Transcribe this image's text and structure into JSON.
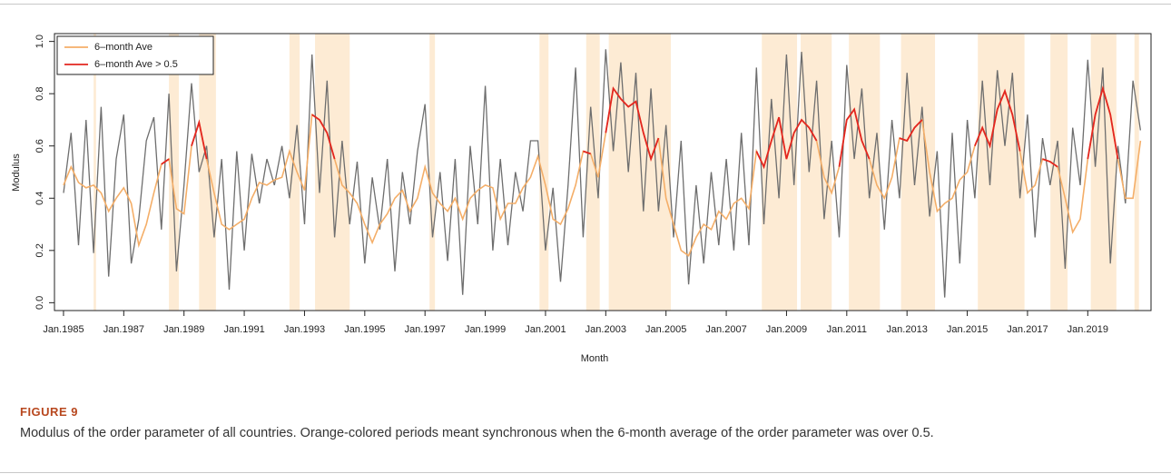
{
  "chart_data": {
    "type": "line",
    "x_label": "Month",
    "y_label": "Modulus",
    "xlim": [
      1984.7,
      2021.1
    ],
    "ylim": [
      -0.03,
      1.03
    ],
    "xticks": [
      {
        "value": 1985,
        "label": "Jan.1985"
      },
      {
        "value": 1987,
        "label": "Jan.1987"
      },
      {
        "value": 1989,
        "label": "Jan.1989"
      },
      {
        "value": 1991,
        "label": "Jan.1991"
      },
      {
        "value": 1993,
        "label": "Jan.1993"
      },
      {
        "value": 1995,
        "label": "Jan.1995"
      },
      {
        "value": 1997,
        "label": "Jan.1997"
      },
      {
        "value": 1999,
        "label": "Jan.1999"
      },
      {
        "value": 2001,
        "label": "Jan.2001"
      },
      {
        "value": 2003,
        "label": "Jan.2003"
      },
      {
        "value": 2005,
        "label": "Jan.2005"
      },
      {
        "value": 2007,
        "label": "Jan.2007"
      },
      {
        "value": 2009,
        "label": "Jan.2009"
      },
      {
        "value": 2011,
        "label": "Jan.2011"
      },
      {
        "value": 2013,
        "label": "Jan.2013"
      },
      {
        "value": 2015,
        "label": "Jan.2015"
      },
      {
        "value": 2017,
        "label": "Jan.2017"
      },
      {
        "value": 2019,
        "label": "Jan.2019"
      }
    ],
    "yticks": [
      {
        "value": 0,
        "label": "0.0"
      },
      0.2,
      0.4,
      0.6,
      0.8,
      {
        "value": 1,
        "label": "1.0"
      }
    ],
    "legend": "top-left",
    "periods_color": "#fdebd4",
    "periods": [
      [
        1986.0,
        1986.08
      ],
      [
        1988.5,
        1988.83
      ],
      [
        1989.5,
        1990.06
      ],
      [
        1992.5,
        1992.84
      ],
      [
        1993.35,
        1994.5
      ],
      [
        1997.15,
        1997.33
      ],
      [
        2000.8,
        2001.1
      ],
      [
        2002.35,
        2002.8
      ],
      [
        2003.1,
        2005.16
      ],
      [
        2008.18,
        2009.35
      ],
      [
        2009.47,
        2010.5
      ],
      [
        2011.07,
        2012.1
      ],
      [
        2012.8,
        2013.93
      ],
      [
        2015.35,
        2016.9
      ],
      [
        2017.76,
        2018.33
      ],
      [
        2019.1,
        2019.95
      ],
      [
        2020.55,
        2020.7
      ]
    ],
    "x": [
      1985,
      1985.25,
      1985.5,
      1985.75,
      1986,
      1986.25,
      1986.5,
      1986.75,
      1987,
      1987.25,
      1987.5,
      1987.75,
      1988,
      1988.25,
      1988.5,
      1988.75,
      1989,
      1989.25,
      1989.5,
      1989.75,
      1990,
      1990.25,
      1990.5,
      1990.75,
      1991,
      1991.25,
      1991.5,
      1991.75,
      1992,
      1992.25,
      1992.5,
      1992.75,
      1993,
      1993.25,
      1993.5,
      1993.75,
      1994,
      1994.25,
      1994.5,
      1994.75,
      1995,
      1995.25,
      1995.5,
      1995.75,
      1996,
      1996.25,
      1996.5,
      1996.75,
      1997,
      1997.25,
      1997.5,
      1997.75,
      1998,
      1998.25,
      1998.5,
      1998.75,
      1999,
      1999.25,
      1999.5,
      1999.75,
      2000,
      2000.25,
      2000.5,
      2000.75,
      2001,
      2001.25,
      2001.5,
      2001.75,
      2002,
      2002.25,
      2002.5,
      2002.75,
      2003,
      2003.25,
      2003.5,
      2003.75,
      2004,
      2004.25,
      2004.5,
      2004.75,
      2005,
      2005.25,
      2005.5,
      2005.75,
      2006,
      2006.25,
      2006.5,
      2006.75,
      2007,
      2007.25,
      2007.5,
      2007.75,
      2008,
      2008.25,
      2008.5,
      2008.75,
      2009,
      2009.25,
      2009.5,
      2009.75,
      2010,
      2010.25,
      2010.5,
      2010.75,
      2011,
      2011.25,
      2011.5,
      2011.75,
      2012,
      2012.25,
      2012.5,
      2012.75,
      2013,
      2013.25,
      2013.5,
      2013.75,
      2014,
      2014.25,
      2014.5,
      2014.75,
      2015,
      2015.25,
      2015.5,
      2015.75,
      2016,
      2016.25,
      2016.5,
      2016.75,
      2017,
      2017.25,
      2017.5,
      2017.75,
      2018,
      2018.25,
      2018.5,
      2018.75,
      2019,
      2019.25,
      2019.5,
      2019.75,
      2020,
      2020.25,
      2020.5,
      2020.75
    ],
    "series": [
      {
        "color": "#6e6e6e",
        "values": [
          0.42,
          0.65,
          0.22,
          0.7,
          0.19,
          0.75,
          0.1,
          0.55,
          0.72,
          0.15,
          0.32,
          0.62,
          0.71,
          0.28,
          0.8,
          0.12,
          0.45,
          0.84,
          0.5,
          0.6,
          0.25,
          0.55,
          0.05,
          0.58,
          0.2,
          0.57,
          0.38,
          0.55,
          0.45,
          0.6,
          0.4,
          0.68,
          0.3,
          0.95,
          0.42,
          0.85,
          0.25,
          0.62,
          0.3,
          0.54,
          0.15,
          0.48,
          0.28,
          0.55,
          0.12,
          0.5,
          0.3,
          0.58,
          0.76,
          0.25,
          0.5,
          0.16,
          0.55,
          0.03,
          0.6,
          0.3,
          0.83,
          0.2,
          0.55,
          0.22,
          0.5,
          0.35,
          0.62,
          0.62,
          0.2,
          0.44,
          0.08,
          0.45,
          0.9,
          0.25,
          0.75,
          0.4,
          0.97,
          0.58,
          0.92,
          0.5,
          0.88,
          0.35,
          0.82,
          0.35,
          0.68,
          0.25,
          0.62,
          0.07,
          0.45,
          0.15,
          0.5,
          0.22,
          0.55,
          0.2,
          0.65,
          0.22,
          0.9,
          0.3,
          0.78,
          0.4,
          0.95,
          0.45,
          0.96,
          0.5,
          0.85,
          0.32,
          0.62,
          0.25,
          0.91,
          0.55,
          0.82,
          0.4,
          0.65,
          0.28,
          0.7,
          0.4,
          0.88,
          0.45,
          0.75,
          0.33,
          0.58,
          0.02,
          0.65,
          0.15,
          0.7,
          0.4,
          0.85,
          0.45,
          0.89,
          0.6,
          0.88,
          0.4,
          0.72,
          0.25,
          0.63,
          0.45,
          0.62,
          0.13,
          0.67,
          0.45,
          0.93,
          0.52,
          0.9,
          0.15,
          0.6,
          0.38,
          0.85,
          0.66
        ]
      },
      {
        "name": "6–month Ave",
        "color": "#f4ae68",
        "values": [
          0.45,
          0.52,
          0.46,
          0.44,
          0.45,
          0.42,
          0.35,
          0.4,
          0.44,
          0.38,
          0.22,
          0.3,
          0.42,
          0.53,
          0.55,
          0.36,
          0.34,
          0.6,
          0.69,
          0.55,
          0.42,
          0.3,
          0.28,
          0.3,
          0.32,
          0.4,
          0.46,
          0.45,
          0.47,
          0.48,
          0.58,
          0.5,
          0.43,
          0.72,
          0.7,
          0.65,
          0.55,
          0.45,
          0.42,
          0.38,
          0.3,
          0.23,
          0.3,
          0.34,
          0.4,
          0.43,
          0.35,
          0.4,
          0.52,
          0.42,
          0.38,
          0.35,
          0.4,
          0.32,
          0.4,
          0.43,
          0.45,
          0.44,
          0.32,
          0.38,
          0.38,
          0.44,
          0.48,
          0.56,
          0.45,
          0.32,
          0.3,
          0.36,
          0.45,
          0.58,
          0.57,
          0.48,
          0.65,
          0.82,
          0.78,
          0.75,
          0.77,
          0.65,
          0.55,
          0.63,
          0.4,
          0.3,
          0.2,
          0.18,
          0.25,
          0.3,
          0.28,
          0.35,
          0.32,
          0.38,
          0.4,
          0.36,
          0.58,
          0.52,
          0.62,
          0.71,
          0.55,
          0.65,
          0.7,
          0.67,
          0.62,
          0.48,
          0.42,
          0.52,
          0.7,
          0.74,
          0.62,
          0.55,
          0.45,
          0.4,
          0.48,
          0.63,
          0.62,
          0.67,
          0.7,
          0.5,
          0.35,
          0.38,
          0.4,
          0.47,
          0.5,
          0.6,
          0.67,
          0.6,
          0.74,
          0.81,
          0.72,
          0.58,
          0.42,
          0.45,
          0.55,
          0.54,
          0.52,
          0.4,
          0.27,
          0.32,
          0.55,
          0.72,
          0.82,
          0.72,
          0.55,
          0.4,
          0.4,
          0.62
        ]
      }
    ],
    "highlight": {
      "name": "6–month Ave > 0.5",
      "color": "#e3261f",
      "threshold": 0.5,
      "series": 1
    }
  },
  "caption": {
    "label": "FIGURE 9",
    "text": "Modulus of the order parameter of all countries. Orange-colored periods meant synchronous when the 6-month average of the order parameter was over 0.5."
  }
}
